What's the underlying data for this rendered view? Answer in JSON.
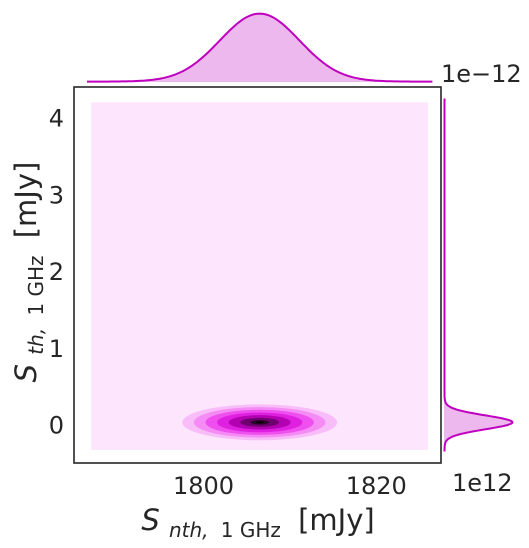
{
  "chart_data": {
    "type": "kde-joint",
    "xlabel_main": "S",
    "xlabel_sub": "nth,",
    "xlabel_sub2": "1 GHz",
    "xlabel_unit": "[mJy]",
    "ylabel_main": "S",
    "ylabel_sub": "th,",
    "ylabel_sub2": "1 GHz",
    "ylabel_unit": "[mJy]",
    "x_offset_text": "1e12",
    "y_offset_text": "1e−12",
    "x_ticks": [
      1800,
      1820
    ],
    "x_tick_labels": [
      "1800",
      "1820"
    ],
    "y_ticks": [
      0,
      1,
      2,
      3,
      4
    ],
    "y_tick_labels": [
      "0",
      "1",
      "2",
      "3",
      "4"
    ],
    "xlim": [
      1785,
      1827.5
    ],
    "ylim": [
      -0.5,
      4.4
    ],
    "kde_region": {
      "x": [
        1787,
        1826
      ],
      "y": [
        -0.33,
        4.2
      ]
    },
    "peak": {
      "x": 1806.5,
      "y": 0.03
    },
    "spread": {
      "x": 4.6,
      "y": 0.09
    },
    "contour_levels": [
      1.0,
      0.85,
      0.7,
      0.55,
      0.4,
      0.25,
      0.12
    ],
    "colors": {
      "accent": "#bf00bf",
      "fill_light": "#fde6fd",
      "marginal_fill": "#edb8ed",
      "contours": [
        "#f8bdf8",
        "#f58cf5",
        "#ee4fee",
        "#e020e0",
        "#b300b3",
        "#6f006f",
        "#2a002a",
        "#0a000a"
      ]
    }
  }
}
